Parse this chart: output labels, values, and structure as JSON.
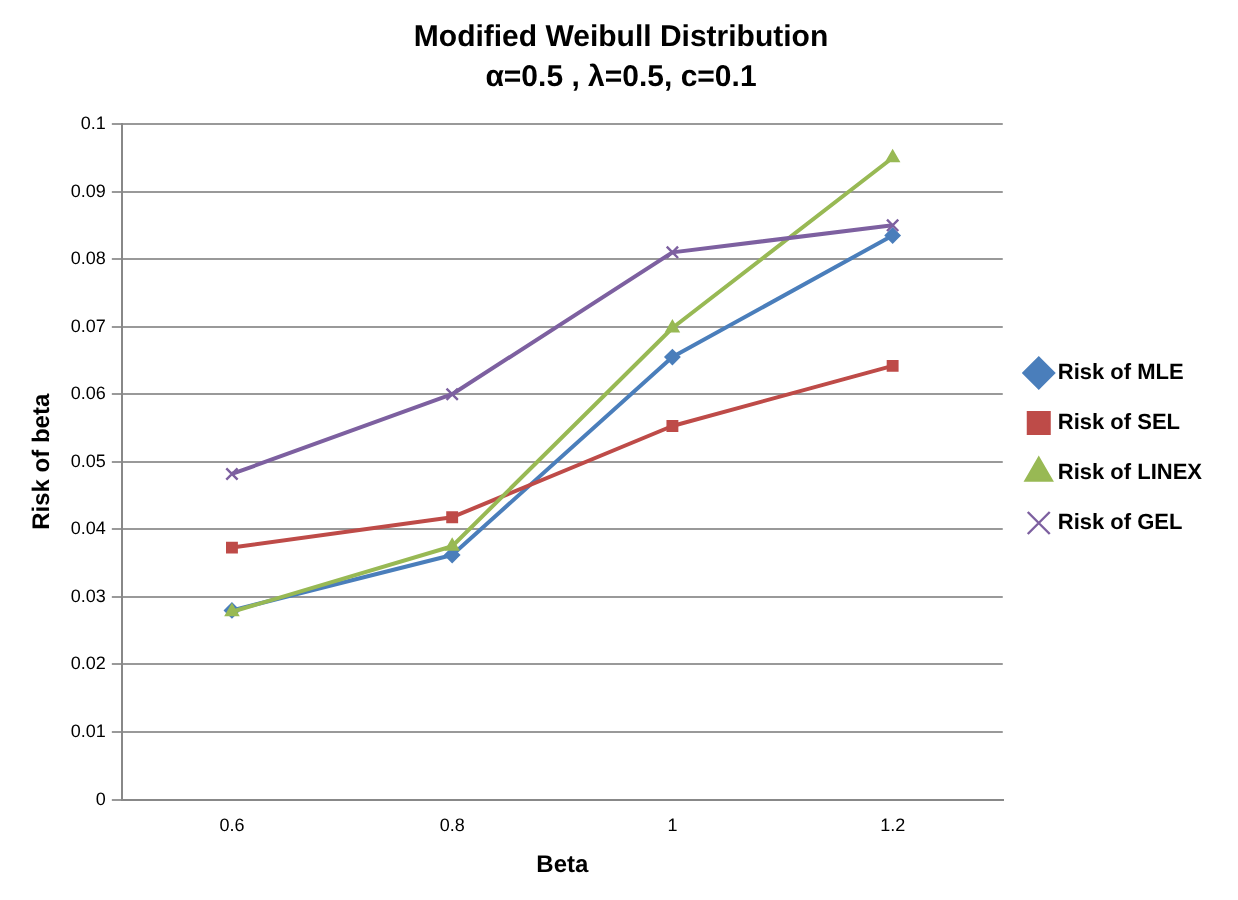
{
  "chart_data": {
    "type": "line",
    "title": "Modified Weibull Distribution",
    "subtitle": "α=0.5 , λ=0.5, c=0.1",
    "xlabel": "Beta",
    "ylabel": "Risk of beta",
    "categories": [
      "0.6",
      "0.8",
      "1",
      "1.2"
    ],
    "series": [
      {
        "name": "Risk of MLE",
        "color": "#4a7ebb",
        "marker": "diamond",
        "values": [
          0.028,
          0.0362,
          0.0655,
          0.0835
        ]
      },
      {
        "name": "Risk of SEL",
        "color": "#be4b48",
        "marker": "square",
        "values": [
          0.0373,
          0.0418,
          0.0553,
          0.0642
        ]
      },
      {
        "name": "Risk of LINEX",
        "color": "#98b954",
        "marker": "triangle",
        "values": [
          0.0278,
          0.0375,
          0.0698,
          0.095
        ]
      },
      {
        "name": "Risk of GEL",
        "color": "#7d60a0",
        "marker": "cross",
        "values": [
          0.0482,
          0.06,
          0.081,
          0.085
        ]
      }
    ],
    "ylim": [
      0,
      0.1
    ],
    "yticks": [
      0,
      0.01,
      0.02,
      0.03,
      0.04,
      0.05,
      0.06,
      0.07,
      0.08,
      0.09,
      0.1
    ],
    "grid": "y",
    "legend": "right",
    "line_style": "solid"
  }
}
